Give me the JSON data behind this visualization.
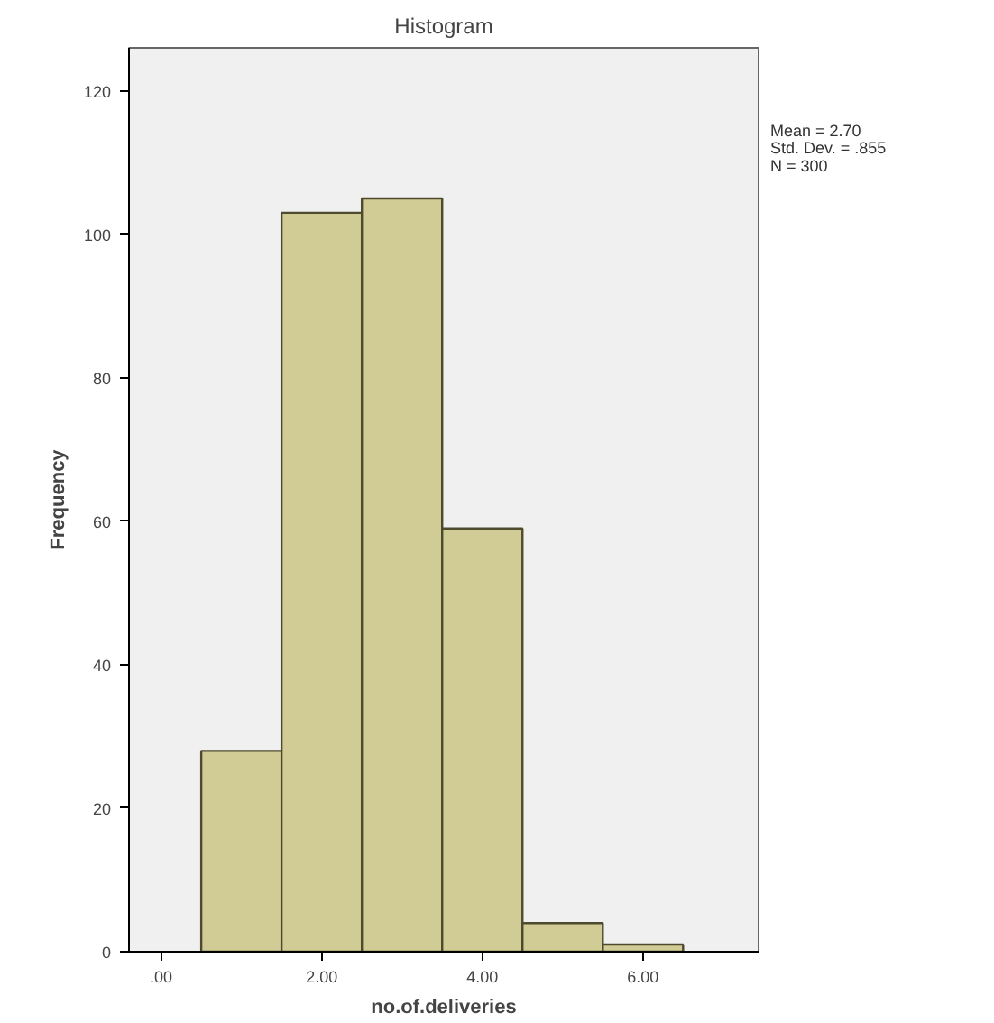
{
  "chart_data": {
    "type": "histogram",
    "title": "Histogram",
    "xlabel": "no.of.deliveries",
    "ylabel": "Frequency",
    "bins": [
      0.5,
      1.5,
      2.5,
      3.5,
      4.5,
      5.5,
      6.5
    ],
    "values": [
      28,
      103,
      105,
      59,
      4,
      1
    ],
    "color": "#d1cc96",
    "xlim": [
      -0.4,
      7.44
    ],
    "ylim": [
      0,
      126
    ],
    "xticks": [
      {
        "value": 0,
        "label": ".00"
      },
      {
        "value": 2,
        "label": "2.00"
      },
      {
        "value": 4,
        "label": "4.00"
      },
      {
        "value": 6,
        "label": "6.00"
      }
    ],
    "yticks": [
      0,
      20,
      40,
      60,
      80,
      100,
      120
    ],
    "grid": false,
    "annotations": [
      "Mean = 2.70",
      "Std. Dev. = .855",
      "N = 300"
    ]
  }
}
